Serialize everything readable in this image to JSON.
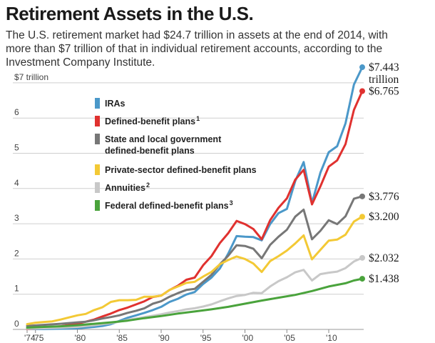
{
  "title": "Retirement Assets in the U.S.",
  "subtitle": "The U.S. retirement market had $24.7 trillion in assets at the end of 2014, with more than $7 trillion of that in individual retirement accounts, according to the Investment Company Institute.",
  "chart_data": {
    "type": "line",
    "ylabel": "$7 trillion",
    "ylim": [
      0,
      7.6
    ],
    "xlim": [
      1974,
      2014
    ],
    "y_ticks": [
      "0",
      "1",
      "2",
      "3",
      "4",
      "5",
      "6",
      "$7 trillion"
    ],
    "x_ticks": [
      "'74",
      "'75",
      "'80",
      "'85",
      "'90",
      "'95",
      "'00",
      "'05",
      "'10"
    ],
    "x_tick_values": [
      1974,
      1975,
      1980,
      1985,
      1990,
      1995,
      2000,
      2005,
      2010
    ],
    "grid": true,
    "legend_position": "top-left",
    "series": [
      {
        "name": "IRAs",
        "sup": "",
        "color": "#4b98c9",
        "end_label": "$7.443",
        "end_label_2": "trillion",
        "points": [
          [
            1974,
            0.01
          ],
          [
            1976,
            0.01
          ],
          [
            1978,
            0.02
          ],
          [
            1980,
            0.03
          ],
          [
            1981,
            0.05
          ],
          [
            1982,
            0.07
          ],
          [
            1983,
            0.1
          ],
          [
            1984,
            0.15
          ],
          [
            1985,
            0.24
          ],
          [
            1986,
            0.33
          ],
          [
            1987,
            0.4
          ],
          [
            1988,
            0.47
          ],
          [
            1989,
            0.55
          ],
          [
            1990,
            0.64
          ],
          [
            1991,
            0.78
          ],
          [
            1992,
            0.87
          ],
          [
            1993,
            0.99
          ],
          [
            1994,
            1.06
          ],
          [
            1995,
            1.29
          ],
          [
            1996,
            1.47
          ],
          [
            1997,
            1.73
          ],
          [
            1998,
            2.15
          ],
          [
            1999,
            2.65
          ],
          [
            2000,
            2.63
          ],
          [
            2001,
            2.62
          ],
          [
            2002,
            2.53
          ],
          [
            2003,
            2.99
          ],
          [
            2004,
            3.3
          ],
          [
            2005,
            3.42
          ],
          [
            2006,
            4.21
          ],
          [
            2007,
            4.75
          ],
          [
            2008,
            3.59
          ],
          [
            2009,
            4.45
          ],
          [
            2010,
            5.03
          ],
          [
            2011,
            5.2
          ],
          [
            2012,
            5.85
          ],
          [
            2013,
            6.95
          ],
          [
            2014,
            7.443
          ]
        ]
      },
      {
        "name": "Defined-benefit plans",
        "sup": "1",
        "color": "#e0312f",
        "end_label": "$6.765",
        "end_label_2": "",
        "points": [
          [
            1974,
            0.01
          ],
          [
            1976,
            0.04
          ],
          [
            1978,
            0.09
          ],
          [
            1980,
            0.16
          ],
          [
            1981,
            0.22
          ],
          [
            1982,
            0.28
          ],
          [
            1983,
            0.37
          ],
          [
            1984,
            0.45
          ],
          [
            1985,
            0.55
          ],
          [
            1986,
            0.62
          ],
          [
            1987,
            0.71
          ],
          [
            1988,
            0.8
          ],
          [
            1989,
            0.92
          ],
          [
            1990,
            0.96
          ],
          [
            1991,
            1.12
          ],
          [
            1992,
            1.24
          ],
          [
            1993,
            1.41
          ],
          [
            1994,
            1.47
          ],
          [
            1995,
            1.82
          ],
          [
            1996,
            2.08
          ],
          [
            1997,
            2.45
          ],
          [
            1998,
            2.73
          ],
          [
            1999,
            3.08
          ],
          [
            2000,
            2.99
          ],
          [
            2001,
            2.85
          ],
          [
            2002,
            2.56
          ],
          [
            2003,
            3.1
          ],
          [
            2004,
            3.45
          ],
          [
            2005,
            3.72
          ],
          [
            2006,
            4.25
          ],
          [
            2007,
            4.53
          ],
          [
            2008,
            3.55
          ],
          [
            2009,
            4.06
          ],
          [
            2010,
            4.62
          ],
          [
            2011,
            4.8
          ],
          [
            2012,
            5.26
          ],
          [
            2013,
            6.23
          ],
          [
            2014,
            6.765
          ]
        ]
      },
      {
        "name": "State and local government defined-benefit plans",
        "sup": "",
        "color": "#777777",
        "end_label": "$3.776",
        "end_label_2": "",
        "points": [
          [
            1974,
            0.1
          ],
          [
            1976,
            0.13
          ],
          [
            1978,
            0.16
          ],
          [
            1980,
            0.2
          ],
          [
            1981,
            0.22
          ],
          [
            1982,
            0.26
          ],
          [
            1983,
            0.31
          ],
          [
            1984,
            0.35
          ],
          [
            1985,
            0.4
          ],
          [
            1986,
            0.47
          ],
          [
            1987,
            0.53
          ],
          [
            1988,
            0.6
          ],
          [
            1989,
            0.73
          ],
          [
            1990,
            0.8
          ],
          [
            1991,
            0.93
          ],
          [
            1992,
            1.03
          ],
          [
            1993,
            1.12
          ],
          [
            1994,
            1.15
          ],
          [
            1995,
            1.35
          ],
          [
            1996,
            1.55
          ],
          [
            1997,
            1.85
          ],
          [
            1998,
            2.09
          ],
          [
            1999,
            2.39
          ],
          [
            2000,
            2.37
          ],
          [
            2001,
            2.29
          ],
          [
            2002,
            2.02
          ],
          [
            2003,
            2.4
          ],
          [
            2004,
            2.63
          ],
          [
            2005,
            2.83
          ],
          [
            2006,
            3.2
          ],
          [
            2007,
            3.4
          ],
          [
            2008,
            2.56
          ],
          [
            2009,
            2.8
          ],
          [
            2010,
            3.1
          ],
          [
            2011,
            2.99
          ],
          [
            2012,
            3.21
          ],
          [
            2013,
            3.71
          ],
          [
            2014,
            3.776
          ]
        ]
      },
      {
        "name": "Private-sector defined-benefit plans",
        "sup": "",
        "color": "#f3c935",
        "end_label": "$3.200",
        "end_label_2": "",
        "points": [
          [
            1974,
            0.15
          ],
          [
            1975,
            0.19
          ],
          [
            1976,
            0.21
          ],
          [
            1977,
            0.23
          ],
          [
            1978,
            0.28
          ],
          [
            1979,
            0.34
          ],
          [
            1980,
            0.4
          ],
          [
            1981,
            0.44
          ],
          [
            1982,
            0.55
          ],
          [
            1983,
            0.63
          ],
          [
            1984,
            0.78
          ],
          [
            1985,
            0.83
          ],
          [
            1986,
            0.83
          ],
          [
            1987,
            0.84
          ],
          [
            1988,
            0.93
          ],
          [
            1989,
            0.93
          ],
          [
            1990,
            0.96
          ],
          [
            1991,
            1.12
          ],
          [
            1992,
            1.22
          ],
          [
            1993,
            1.32
          ],
          [
            1994,
            1.35
          ],
          [
            1995,
            1.5
          ],
          [
            1996,
            1.63
          ],
          [
            1997,
            1.85
          ],
          [
            1998,
            1.97
          ],
          [
            1999,
            2.07
          ],
          [
            2000,
            2.0
          ],
          [
            2001,
            1.87
          ],
          [
            2002,
            1.63
          ],
          [
            2003,
            1.94
          ],
          [
            2004,
            2.08
          ],
          [
            2005,
            2.24
          ],
          [
            2006,
            2.44
          ],
          [
            2007,
            2.67
          ],
          [
            2008,
            1.99
          ],
          [
            2009,
            2.26
          ],
          [
            2010,
            2.52
          ],
          [
            2011,
            2.55
          ],
          [
            2012,
            2.69
          ],
          [
            2013,
            3.06
          ],
          [
            2014,
            3.2
          ]
        ]
      },
      {
        "name": "Annuities",
        "sup": "2",
        "color": "#c8c8c8",
        "end_label": "$2.032",
        "end_label_2": "",
        "points": [
          [
            1974,
            0.02
          ],
          [
            1976,
            0.03
          ],
          [
            1978,
            0.05
          ],
          [
            1980,
            0.07
          ],
          [
            1982,
            0.12
          ],
          [
            1984,
            0.18
          ],
          [
            1985,
            0.22
          ],
          [
            1986,
            0.27
          ],
          [
            1987,
            0.31
          ],
          [
            1988,
            0.35
          ],
          [
            1989,
            0.39
          ],
          [
            1990,
            0.43
          ],
          [
            1991,
            0.48
          ],
          [
            1992,
            0.52
          ],
          [
            1993,
            0.57
          ],
          [
            1994,
            0.6
          ],
          [
            1995,
            0.65
          ],
          [
            1996,
            0.71
          ],
          [
            1997,
            0.8
          ],
          [
            1998,
            0.88
          ],
          [
            1999,
            0.95
          ],
          [
            2000,
            0.98
          ],
          [
            2001,
            1.04
          ],
          [
            2002,
            1.03
          ],
          [
            2003,
            1.22
          ],
          [
            2004,
            1.37
          ],
          [
            2005,
            1.48
          ],
          [
            2006,
            1.62
          ],
          [
            2007,
            1.69
          ],
          [
            2008,
            1.39
          ],
          [
            2009,
            1.57
          ],
          [
            2010,
            1.61
          ],
          [
            2011,
            1.64
          ],
          [
            2012,
            1.74
          ],
          [
            2013,
            1.93
          ],
          [
            2014,
            2.032
          ]
        ]
      },
      {
        "name": "Federal defined-benefit plans",
        "sup": "3",
        "color": "#4aa33c",
        "end_label": "$1.438",
        "end_label_2": "",
        "points": [
          [
            1974,
            0.05
          ],
          [
            1976,
            0.07
          ],
          [
            1978,
            0.09
          ],
          [
            1980,
            0.12
          ],
          [
            1982,
            0.16
          ],
          [
            1984,
            0.2
          ],
          [
            1986,
            0.25
          ],
          [
            1988,
            0.32
          ],
          [
            1990,
            0.38
          ],
          [
            1992,
            0.45
          ],
          [
            1994,
            0.51
          ],
          [
            1996,
            0.57
          ],
          [
            1998,
            0.64
          ],
          [
            2000,
            0.73
          ],
          [
            2002,
            0.82
          ],
          [
            2004,
            0.9
          ],
          [
            2006,
            0.98
          ],
          [
            2008,
            1.09
          ],
          [
            2010,
            1.22
          ],
          [
            2012,
            1.31
          ],
          [
            2013,
            1.39
          ],
          [
            2014,
            1.438
          ]
        ]
      }
    ]
  }
}
